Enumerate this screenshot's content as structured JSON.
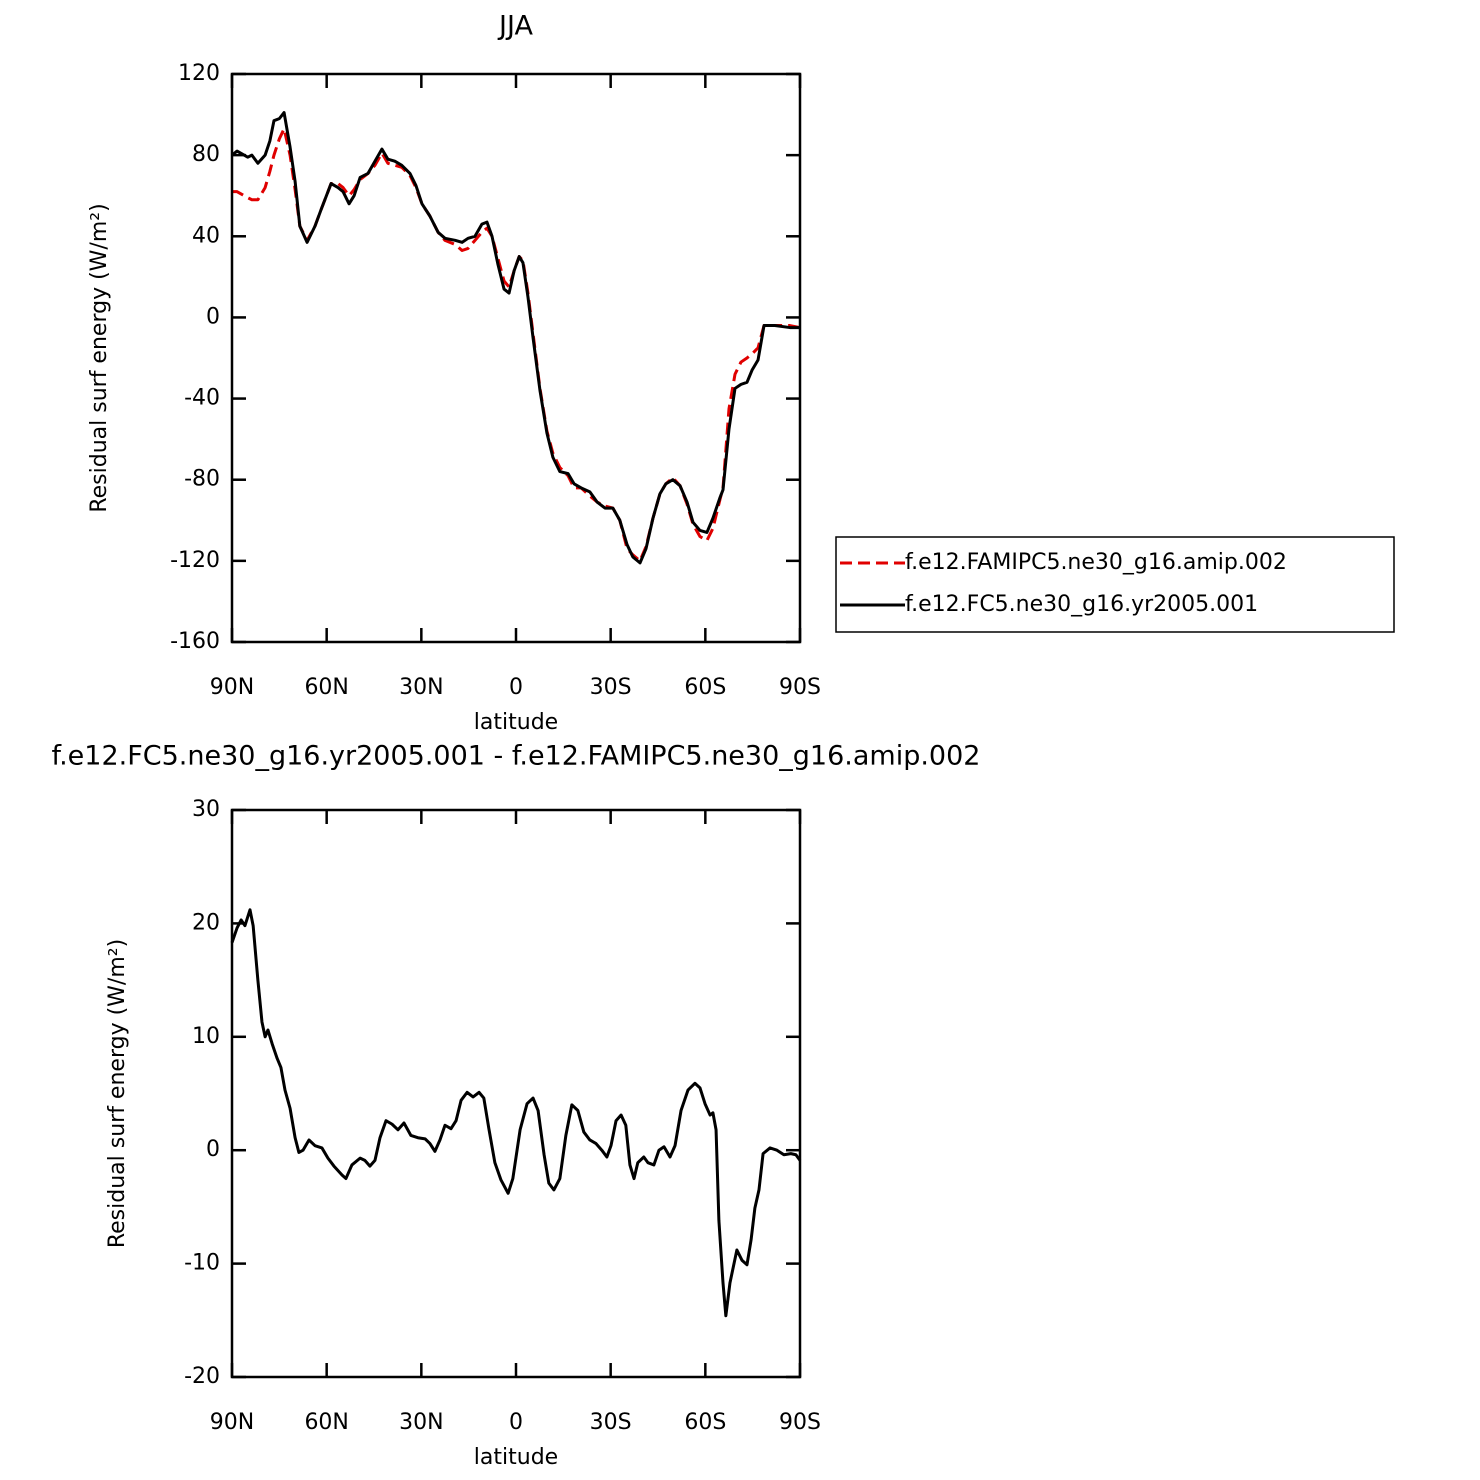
{
  "chart_data": [
    {
      "type": "line",
      "title": "JJA",
      "xlabel": "latitude",
      "ylabel": "Residual surf energy (W/m²)",
      "xlim": [
        90,
        -90
      ],
      "xticks": [
        {
          "value": 90,
          "label": "90N"
        },
        {
          "value": 60,
          "label": "60N"
        },
        {
          "value": 30,
          "label": "30N"
        },
        0,
        {
          "value": -30,
          "label": "30S"
        },
        {
          "value": -60,
          "label": "60S"
        },
        {
          "value": -90,
          "label": "90S"
        }
      ],
      "ylim": [
        -160,
        120
      ],
      "yticks": [
        -160,
        -120,
        -80,
        -40,
        0,
        40,
        80,
        120
      ],
      "legend": "right",
      "x": [
        90,
        88.4,
        85,
        83.7,
        81.8,
        79.5,
        78,
        76.7,
        75,
        73.5,
        71.6,
        70,
        68.5,
        66.2,
        63.7,
        61.8,
        58.6,
        56.4,
        54.8,
        52.9,
        51.3,
        49.4,
        46.9,
        44.7,
        42.5,
        40.6,
        38.4,
        36.2,
        33.6,
        31.7,
        29.8,
        27.3,
        24.7,
        22.5,
        19.3,
        17.1,
        15.2,
        13,
        10.8,
        9.2,
        7.6,
        5.7,
        3.8,
        2.2,
        0.6,
        -1,
        -2.2,
        -3.8,
        -5.4,
        -7.6,
        -9.8,
        -11.7,
        -13.9,
        -16.5,
        -18.4,
        -20.6,
        -23.4,
        -25.7,
        -28.2,
        -30.7,
        -32.9,
        -35.2,
        -37,
        -39.3,
        -41.2,
        -43.4,
        -45.6,
        -47.5,
        -49.7,
        -52,
        -54.2,
        -56.1,
        -58.3,
        -60.5,
        -62.4,
        -64.6,
        -65.6,
        -67.5,
        -69.4,
        -71.3,
        -73.2,
        -74.8,
        -76.7,
        -78.6,
        -82,
        -86.8,
        -90
      ],
      "series": [
        {
          "name": "f.e12.FAMIPC5.ne30_g16.amip.002",
          "color": "#e00000",
          "dashed": true,
          "values": [
            62,
            62,
            59,
            58,
            58,
            64,
            72,
            80,
            88,
            93,
            80,
            63,
            45,
            38,
            45,
            53,
            66,
            66,
            64,
            60,
            63,
            68,
            71,
            75,
            81,
            76,
            75,
            74,
            70,
            64,
            56,
            50,
            42,
            38,
            36,
            33,
            34,
            38,
            42,
            44,
            40,
            29,
            18,
            15,
            23,
            30,
            28,
            12,
            -8,
            -35,
            -56,
            -67,
            -74,
            -78,
            -84,
            -84,
            -88,
            -91,
            -93,
            -94,
            -100,
            -114,
            -117,
            -120,
            -113,
            -99,
            -87,
            -82,
            -79,
            -83,
            -92,
            -102,
            -108,
            -110,
            -104,
            -90,
            -84,
            -45,
            -28,
            -22,
            -20,
            -18,
            -15,
            -4,
            -4,
            -4,
            -5
          ]
        },
        {
          "name": "f.e12.FC5.ne30_g16.yr2005.001",
          "color": "#000000",
          "dashed": false,
          "values": [
            80,
            82,
            79,
            80,
            76,
            80,
            87,
            97,
            98,
            101,
            84,
            67,
            45,
            37,
            45,
            53,
            66,
            64,
            62,
            56,
            60,
            69,
            71,
            77,
            83,
            78,
            77,
            75,
            71,
            65,
            56,
            50,
            42,
            39,
            38,
            37,
            39,
            40,
            46,
            47,
            40,
            26,
            14,
            12,
            23,
            30,
            27,
            10,
            -10,
            -36,
            -57,
            -69,
            -76,
            -77,
            -82,
            -84,
            -86,
            -91,
            -94,
            -94,
            -100,
            -112,
            -118,
            -121,
            -114,
            -99,
            -87,
            -82,
            -80,
            -83,
            -91,
            -101,
            -105,
            -106,
            -99,
            -89,
            -85,
            -55,
            -35,
            -33,
            -32,
            -26,
            -21,
            -4,
            -4,
            -5,
            -5
          ]
        }
      ]
    },
    {
      "type": "line",
      "title": "f.e12.FC5.ne30_g16.yr2005.001 - f.e12.FAMIPC5.ne30_g16.amip.002",
      "xlabel": "latitude",
      "ylabel": "Residual surf energy (W/m²)",
      "xlim": [
        90,
        -90
      ],
      "xticks": [
        {
          "value": 90,
          "label": "90N"
        },
        {
          "value": 60,
          "label": "60N"
        },
        {
          "value": 30,
          "label": "30N"
        },
        0,
        {
          "value": -30,
          "label": "30S"
        },
        {
          "value": -60,
          "label": "60S"
        },
        {
          "value": -90,
          "label": "90S"
        }
      ],
      "ylim": [
        -20,
        30
      ],
      "yticks": [
        -20,
        -10,
        0,
        10,
        20,
        30
      ],
      "x": [
        90,
        88.4,
        87.1,
        85.9,
        84.3,
        83.3,
        81.8,
        80.5,
        79.5,
        78.6,
        77.3,
        75.7,
        74.5,
        73.2,
        71.6,
        70,
        68.8,
        67.5,
        65.6,
        63.7,
        61.5,
        59.6,
        57.7,
        55.1,
        53.9,
        52,
        49.4,
        47.9,
        46.3,
        44.7,
        43.1,
        41.2,
        39.3,
        37.4,
        35.5,
        33.3,
        31.1,
        28.8,
        27.3,
        25.7,
        24.1,
        22.5,
        20.6,
        19,
        17.4,
        15.5,
        13.6,
        11.7,
        10.2,
        8.6,
        6.7,
        4.8,
        2.5,
        1,
        -1.3,
        -3.5,
        -5.4,
        -7,
        -8.9,
        -10.4,
        -12,
        -13.9,
        -15.8,
        -17.7,
        -19.6,
        -21.5,
        -23.4,
        -25.3,
        -27.2,
        -28.8,
        -30.1,
        -31.7,
        -33.3,
        -34.8,
        -36.1,
        -37.4,
        -38.6,
        -40.5,
        -41.8,
        -43.7,
        -45.3,
        -46.9,
        -48.8,
        -50.4,
        -52.3,
        -54.5,
        -56.7,
        -58.3,
        -59.9,
        -61.5,
        -62.4,
        -63.4,
        -64.3,
        -65.6,
        -66.5,
        -67.8,
        -70,
        -71.6,
        -73.2,
        -74.5,
        -75.7,
        -77,
        -78.3,
        -80.5,
        -82.7,
        -84.9,
        -87.1,
        -88.7,
        -90
      ],
      "series": [
        {
          "color": "#000000",
          "dashed": false,
          "values": [
            18.3,
            19.6,
            20.3,
            19.8,
            21.2,
            19.8,
            15,
            11.3,
            10,
            10.6,
            9.4,
            8.1,
            7.3,
            5.3,
            3.7,
            1.1,
            -0.2,
            0,
            0.9,
            0.4,
            0.2,
            -0.7,
            -1.4,
            -2.2,
            -2.5,
            -1.3,
            -0.7,
            -0.9,
            -1.4,
            -0.9,
            1.1,
            2.6,
            2.3,
            1.8,
            2.4,
            1.3,
            1.1,
            1,
            0.6,
            -0.1,
            0.9,
            2.2,
            1.9,
            2.6,
            4.4,
            5.1,
            4.7,
            5.1,
            4.6,
            1.9,
            -1.1,
            -2.6,
            -3.8,
            -2.5,
            1.8,
            4.1,
            4.6,
            3.5,
            -0.4,
            -2.9,
            -3.5,
            -2.5,
            1.3,
            4,
            3.5,
            1.6,
            0.9,
            0.6,
            0,
            -0.6,
            0.4,
            2.6,
            3.1,
            2.2,
            -1.3,
            -2.5,
            -1.1,
            -0.6,
            -1.1,
            -1.3,
            0,
            0.3,
            -0.6,
            0.4,
            3.5,
            5.3,
            5.9,
            5.5,
            4.1,
            3.1,
            3.3,
            1.8,
            -6.2,
            -11.7,
            -14.6,
            -11.7,
            -8.8,
            -9.7,
            -10.1,
            -7.9,
            -5.1,
            -3.5,
            -0.3,
            0.2,
            0,
            -0.4,
            -0.3,
            -0.4,
            -0.9
          ]
        }
      ]
    }
  ]
}
